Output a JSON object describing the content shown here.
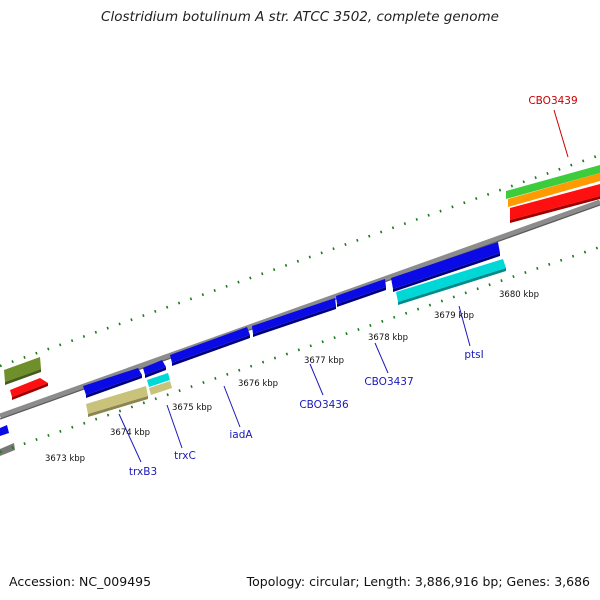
{
  "title": "Clostridium botulinum A str. ATCC 3502, complete genome",
  "footer": {
    "accession": "Accession: NC_009495",
    "stats": "Topology: circular; Length: 3,886,916 bp; Genes: 3,686"
  },
  "colors": {
    "backbone": "#8c8c8c",
    "tick": "#1e7a1e",
    "cds": "#0a0ae6",
    "trna_like": "#00d8d8",
    "khaki": "#c8c27a",
    "olive": "#6f8f2a",
    "red": "#ff1010",
    "green": "#3ccc3c",
    "orange": "#ff9a00",
    "label_blue": "#1a1ab8",
    "label_red": "#cc0000"
  },
  "scale_labels": [
    "3673 kbp",
    "3674 kbp",
    "3675 kbp",
    "3676 kbp",
    "3677 kbp",
    "3678 kbp",
    "3679 kbp",
    "3680 kbp"
  ],
  "gene_labels": [
    {
      "name": "trxB3",
      "color": "blue"
    },
    {
      "name": "trxC",
      "color": "blue"
    },
    {
      "name": "iadA",
      "color": "blue"
    },
    {
      "name": "CBO3436",
      "color": "blue"
    },
    {
      "name": "CBO3437",
      "color": "blue"
    },
    {
      "name": "ptsI",
      "color": "blue"
    },
    {
      "name": "CBO3439",
      "color": "red"
    }
  ]
}
